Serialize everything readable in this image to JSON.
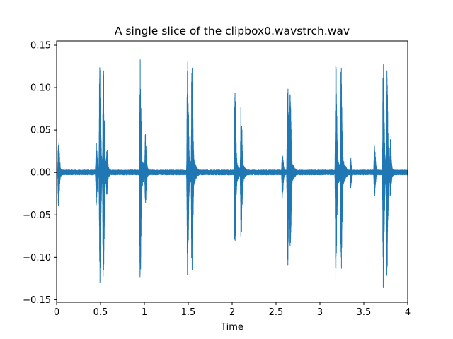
{
  "chart_data": {
    "type": "line",
    "title": "A single slice of the clipbox0.wavstrch.wav",
    "xlabel": "Time",
    "ylabel": "",
    "xlim": [
      0,
      4
    ],
    "ylim": [
      -0.153,
      0.155
    ],
    "xticks": [
      0,
      0.5,
      1,
      1.5,
      2,
      2.5,
      3,
      3.5,
      4
    ],
    "xtick_labels": [
      "0",
      "0.5",
      "1",
      "1.5",
      "2",
      "2.5",
      "3",
      "3.5",
      "4"
    ],
    "yticks": [
      -0.15,
      -0.1,
      -0.05,
      0.0,
      0.05,
      0.1,
      0.15
    ],
    "ytick_labels": [
      "−0.15",
      "−0.10",
      "−0.05",
      "0.00",
      "0.05",
      "0.10",
      "0.15"
    ],
    "grid": false,
    "legend": "none",
    "colors": {
      "series": "#1f77b4"
    },
    "series": [
      {
        "name": "",
        "baseline_noise_amplitude": 0.003,
        "envelope_peaks": [
          {
            "x": 0.02,
            "max": 0.04,
            "min": -0.043
          },
          {
            "x": 0.45,
            "max": 0.04,
            "min": -0.04
          },
          {
            "x": 0.49,
            "max": 0.137,
            "min": -0.138
          },
          {
            "x": 0.53,
            "max": 0.135,
            "min": -0.136
          },
          {
            "x": 0.57,
            "max": 0.03,
            "min": -0.03
          },
          {
            "x": 0.95,
            "max": 0.138,
            "min": -0.14
          },
          {
            "x": 1.01,
            "max": 0.048,
            "min": -0.04
          },
          {
            "x": 1.49,
            "max": 0.138,
            "min": -0.125
          },
          {
            "x": 1.54,
            "max": 0.13,
            "min": -0.125
          },
          {
            "x": 2.03,
            "max": 0.097,
            "min": -0.097
          },
          {
            "x": 2.1,
            "max": 0.087,
            "min": -0.093
          },
          {
            "x": 2.57,
            "max": 0.025,
            "min": -0.03
          },
          {
            "x": 2.63,
            "max": 0.12,
            "min": -0.12
          },
          {
            "x": 2.66,
            "max": 0.1,
            "min": -0.1
          },
          {
            "x": 3.18,
            "max": 0.134,
            "min": -0.132
          },
          {
            "x": 3.24,
            "max": 0.134,
            "min": -0.132
          },
          {
            "x": 3.35,
            "max": 0.017,
            "min": -0.018
          },
          {
            "x": 3.62,
            "max": 0.034,
            "min": -0.03
          },
          {
            "x": 3.72,
            "max": 0.135,
            "min": -0.138
          },
          {
            "x": 3.76,
            "max": 0.135,
            "min": -0.134
          },
          {
            "x": 3.8,
            "max": 0.04,
            "min": -0.03
          }
        ]
      }
    ]
  }
}
